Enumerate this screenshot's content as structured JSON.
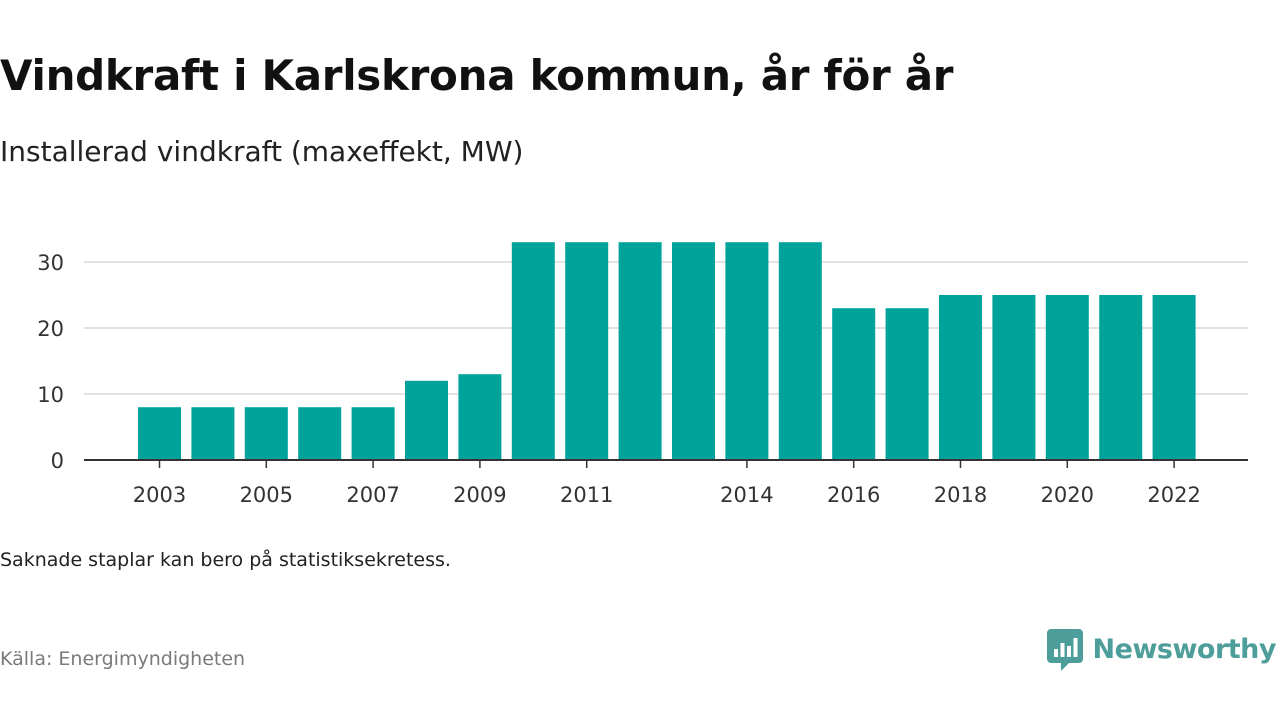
{
  "colors": {
    "bar": "#00a39a",
    "brand": "#4d9e9a",
    "grid": "#d9d9d9",
    "axis": "#333333"
  },
  "header": {
    "title": "Vindkraft i Karlskrona kommun, år för år",
    "subtitle": "Installerad vindkraft (maxeffekt, MW)"
  },
  "footer": {
    "note": "Saknade staplar kan bero på statistiksekretess.",
    "source": "Källa: Energimyndigheten",
    "brand": "Newsworthy",
    "brand_icon": "newsworthy-logo-icon"
  },
  "chart_data": {
    "type": "bar",
    "categories": [
      "2003",
      "2004",
      "2005",
      "2006",
      "2007",
      "2008",
      "2009",
      "2010",
      "2011",
      "2012",
      "2013",
      "2014",
      "2015",
      "2016",
      "2017",
      "2018",
      "2019",
      "2020",
      "2021",
      "2022"
    ],
    "values": [
      8,
      8,
      8,
      8,
      8,
      12,
      13,
      33,
      33,
      33,
      33,
      33,
      33,
      23,
      23,
      25,
      25,
      25,
      25,
      25
    ],
    "x_tick_labels": [
      {
        "label": "2003",
        "year": 2003
      },
      {
        "label": "2005",
        "year": 2005
      },
      {
        "label": "2007",
        "year": 2007
      },
      {
        "label": "2009",
        "year": 2009
      },
      {
        "label": "2011",
        "year": 2011
      },
      {
        "label": "2014",
        "year": 2014
      },
      {
        "label": "2016",
        "year": 2016
      },
      {
        "label": "2018",
        "year": 2018
      },
      {
        "label": "2020",
        "year": 2020
      },
      {
        "label": "2022",
        "year": 2022
      }
    ],
    "y_ticks": [
      0,
      10,
      20,
      30
    ],
    "ylim": [
      0,
      35
    ],
    "grid": true,
    "title": "",
    "xlabel": "",
    "ylabel": ""
  }
}
